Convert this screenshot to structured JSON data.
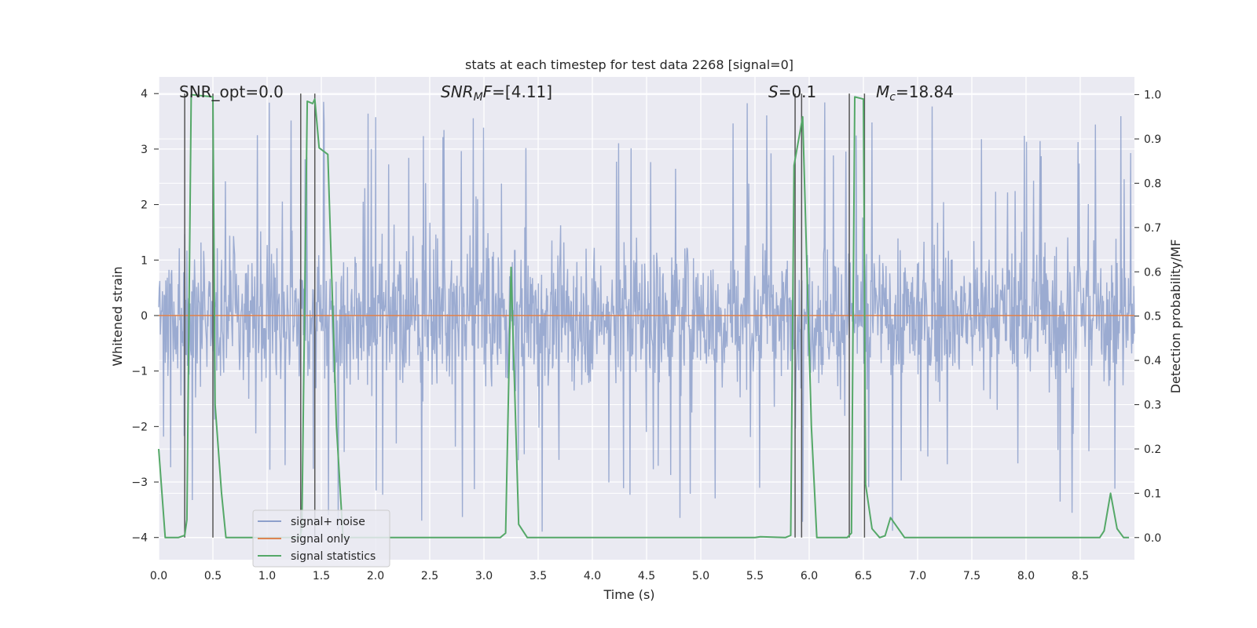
{
  "chart_data": {
    "type": "line",
    "title": "stats at each timestep for test data 2268 [signal=0]",
    "xlabel": "Time (s)",
    "ylabel_left": "Whitened strain",
    "ylabel_right": "Detection probability/MF",
    "xlim": [
      0.0,
      9.0
    ],
    "ylim_left": [
      -4.4,
      4.3
    ],
    "ylim_right": [
      -0.05,
      1.04
    ],
    "x_ticks": [
      "0.0",
      "0.5",
      "1.0",
      "1.5",
      "2.0",
      "2.5",
      "3.0",
      "3.5",
      "4.0",
      "4.5",
      "5.0",
      "5.5",
      "6.0",
      "6.5",
      "7.0",
      "7.5",
      "8.0",
      "8.5"
    ],
    "y_ticks_left": [
      "−4",
      "−3",
      "−2",
      "−1",
      "0",
      "1",
      "2",
      "3",
      "4"
    ],
    "y_ticks_right": [
      "0.0",
      "0.1",
      "0.2",
      "0.3",
      "0.4",
      "0.5",
      "0.6",
      "0.7",
      "0.8",
      "0.9",
      "1.0"
    ],
    "annotations": {
      "snr_opt": "SNR_opt=0.0",
      "snr_mf": "=[4.11]",
      "s_value": "=0.1",
      "mc_value": "=18.84"
    },
    "legend": [
      "signal+ noise",
      "signal only",
      "signal statistics"
    ],
    "legend_position": "lower-left",
    "colors": {
      "noise": "#8da0cb",
      "signal_only": "#dd8452",
      "statistics": "#55a868",
      "vlines": "#555555",
      "bg": "#eaeaf2",
      "grid": "#ffffff"
    },
    "series": [
      {
        "name": "signal+ noise",
        "note": "noisy whitened strain, amplitude roughly within -4 to 4",
        "envelope": {
          "core_abs": 1.5,
          "peak_max": 3.9,
          "peak_min": -4.0
        }
      },
      {
        "name": "signal only",
        "x": [
          0.0,
          9.0
        ],
        "y": [
          0.0,
          0.0
        ]
      },
      {
        "name": "signal statistics",
        "x": [
          0.0,
          0.06,
          0.18,
          0.24,
          0.26,
          0.3,
          0.5,
          0.52,
          0.58,
          0.62,
          1.3,
          1.32,
          1.37,
          1.42,
          1.44,
          1.48,
          1.56,
          1.64,
          1.7,
          3.15,
          3.2,
          3.25,
          3.32,
          3.4,
          5.5,
          5.55,
          5.78,
          5.83,
          5.86,
          5.94,
          6.02,
          6.07,
          6.35,
          6.39,
          6.42,
          6.5,
          6.52,
          6.58,
          6.65,
          6.7,
          6.75,
          6.88,
          8.68,
          8.72,
          8.78,
          8.84,
          8.9,
          8.95
        ],
        "y": [
          0.2,
          0.0,
          0.0,
          0.005,
          0.04,
          1.0,
          0.995,
          0.3,
          0.1,
          0.0,
          0.0,
          0.02,
          0.985,
          0.98,
          0.99,
          0.88,
          0.865,
          0.25,
          0.0,
          0.0,
          0.01,
          0.61,
          0.03,
          0.0,
          0.0,
          0.002,
          0.0,
          0.005,
          0.84,
          0.95,
          0.25,
          0.0,
          0.0,
          0.01,
          0.995,
          0.99,
          0.12,
          0.02,
          0.0,
          0.004,
          0.045,
          0.0,
          0.0,
          0.015,
          0.1,
          0.02,
          0.0,
          0.0
        ]
      }
    ],
    "vertical_markers_x": [
      0.24,
      0.5,
      1.31,
      1.44,
      5.87,
      5.93,
      6.37,
      6.51
    ]
  }
}
